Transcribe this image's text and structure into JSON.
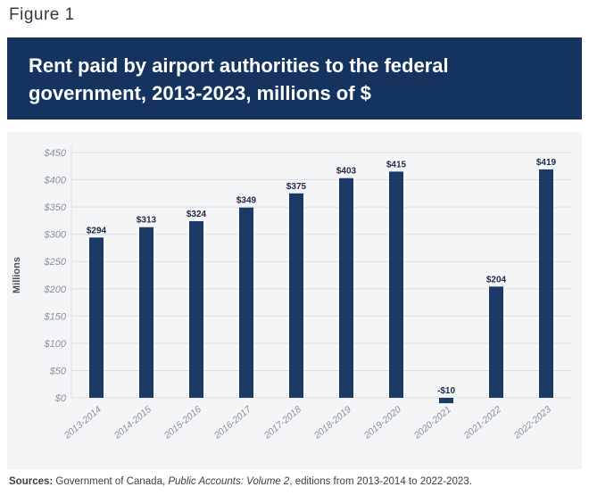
{
  "figure_label": "Figure 1",
  "title": {
    "line1": "Rent paid by airport authorities to the federal",
    "line2": "government, 2013-2023, millions of $"
  },
  "sources": {
    "label": "Sources:",
    "text1": "Government of Canada, ",
    "italic": "Public Accounts: Volume 2",
    "text2": ", editions from 2013-2014 to 2022-2023."
  },
  "colors": {
    "bar": "#1c3a66",
    "banner": "#14335e",
    "grid": "#dde0e5",
    "tick_text": "#8a9099",
    "label_text": "#1c2b45"
  },
  "chart_data": {
    "type": "bar",
    "title": "Rent paid by airport authorities to the federal government, 2013-2023, millions of $",
    "xlabel": "",
    "ylabel": "Millions",
    "ylim": [
      -15,
      450
    ],
    "yticks": [
      0,
      50,
      100,
      150,
      200,
      250,
      300,
      350,
      400,
      450
    ],
    "ytick_labels": [
      "$0",
      "$50",
      "$100",
      "$150",
      "$200",
      "$250",
      "$300",
      "$350",
      "$400",
      "$450"
    ],
    "grid": true,
    "categories": [
      "2013-2014",
      "2014-2015",
      "2015-2016",
      "2016-2017",
      "2017-2018",
      "2018-2019",
      "2019-2020",
      "2020-2021",
      "2021-2022",
      "2022-2023"
    ],
    "values": [
      294,
      313,
      324,
      349,
      375,
      403,
      415,
      -10,
      204,
      419
    ],
    "data_labels": [
      "$294",
      "$313",
      "$324",
      "$349",
      "$375",
      "$403",
      "$415",
      "-$10",
      "$204",
      "$419"
    ]
  }
}
